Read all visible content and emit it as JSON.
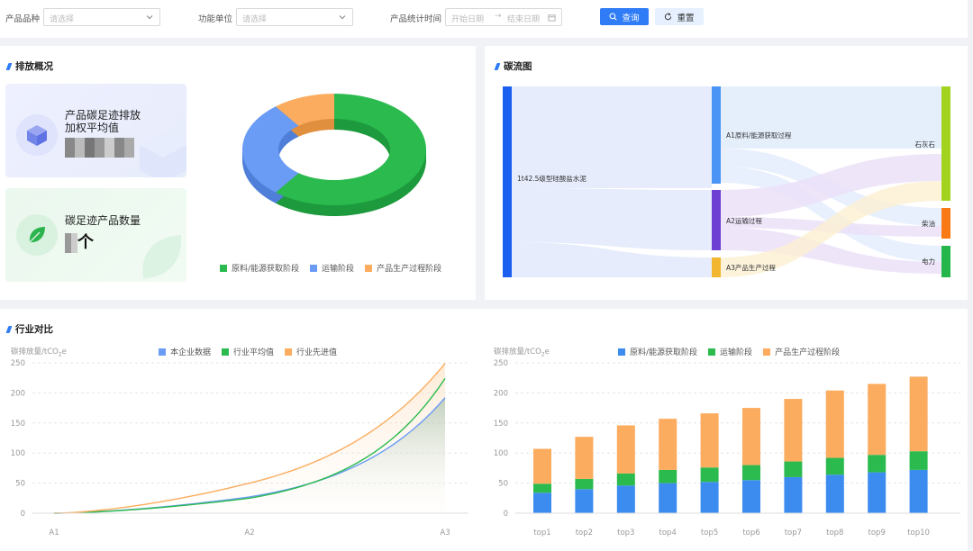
{
  "filters": {
    "product_type_label": "产品品种",
    "product_type_placeholder": "请选择",
    "unit_label": "功能单位",
    "unit_placeholder": "请选择",
    "time_label": "产品统计时间",
    "start_placeholder": "开始日期",
    "end_placeholder": "结束日期",
    "query_label": "查询",
    "reset_label": "重置"
  },
  "emission_overview": {
    "title": "排放概况",
    "card1_label_line1": "产品碳足迹排放",
    "card1_label_line2": "加权平均值",
    "card2_label": "碳足迹产品数量",
    "card2_unit": "个",
    "colors": {
      "stage1": "#2bba4e",
      "stage2": "#6a9cf5",
      "stage3": "#fbac5e"
    },
    "chart_data": {
      "type": "pie",
      "labels": [
        "原料/能源获取阶段",
        "运输阶段",
        "产品生产过程阶段"
      ],
      "values": [
        61,
        28,
        11
      ]
    }
  },
  "carbon_flow": {
    "title": "碳流图",
    "nodes": {
      "source": "1t42.5级型硅酸盐水泥",
      "a1": "A1原料/能源获取过程",
      "a2": "A2运输过程",
      "a3": "A3产品生产过程",
      "limestone": "石灰石",
      "diesel": "柴油",
      "power": "电力"
    },
    "colors": {
      "source": "#1b5ff0",
      "a1": "#4a94f5",
      "a2": "#6d3fd2",
      "a3": "#f2b630",
      "limestone": "#a2d31f",
      "diesel": "#f97a15",
      "power": "#24b64a"
    }
  },
  "industry_comparison": {
    "title": "行业对比",
    "line_chart": {
      "ylabel": "碳排放量/tCO",
      "ylabel_sub": "2",
      "ylabel_tail": "e",
      "chart_data": {
        "type": "line",
        "x": [
          "A1",
          "A2",
          "A3"
        ],
        "ylim": [
          0,
          250
        ],
        "yticks": [
          0,
          50,
          100,
          150,
          200,
          250
        ],
        "series": [
          {
            "name": "本企业数据",
            "color": "#6a9cf5",
            "values": [
              0,
              27,
              192
            ]
          },
          {
            "name": "行业平均值",
            "color": "#2bba4e",
            "values": [
              0,
              25,
              224
            ]
          },
          {
            "name": "行业先进值",
            "color": "#fbac5e",
            "values": [
              0,
              50,
              249
            ]
          }
        ]
      }
    },
    "bar_chart": {
      "ylabel": "碳排放量/tCO",
      "ylabel_sub": "2",
      "ylabel_tail": "e",
      "chart_data": {
        "type": "bar",
        "stacked": true,
        "categories": [
          "top1",
          "top2",
          "top3",
          "top4",
          "top5",
          "top6",
          "top7",
          "top8",
          "top9",
          "top10"
        ],
        "ylim": [
          0,
          250
        ],
        "yticks": [
          0,
          50,
          100,
          150,
          200,
          250
        ],
        "series": [
          {
            "name": "原料/能源获取阶段",
            "color": "#3c8cf0",
            "values": [
              34,
              40,
              46,
              50,
              52,
              55,
              60,
              64,
              68,
              72
            ]
          },
          {
            "name": "运输阶段",
            "color": "#2bba4e",
            "values": [
              15,
              17,
              20,
              22,
              24,
              25,
              26,
              28,
              29,
              31
            ]
          },
          {
            "name": "产品生产过程阶段",
            "color": "#fbac5e",
            "values": [
              58,
              70,
              80,
              85,
              90,
              95,
              104,
              112,
              118,
              124
            ]
          }
        ]
      }
    }
  }
}
